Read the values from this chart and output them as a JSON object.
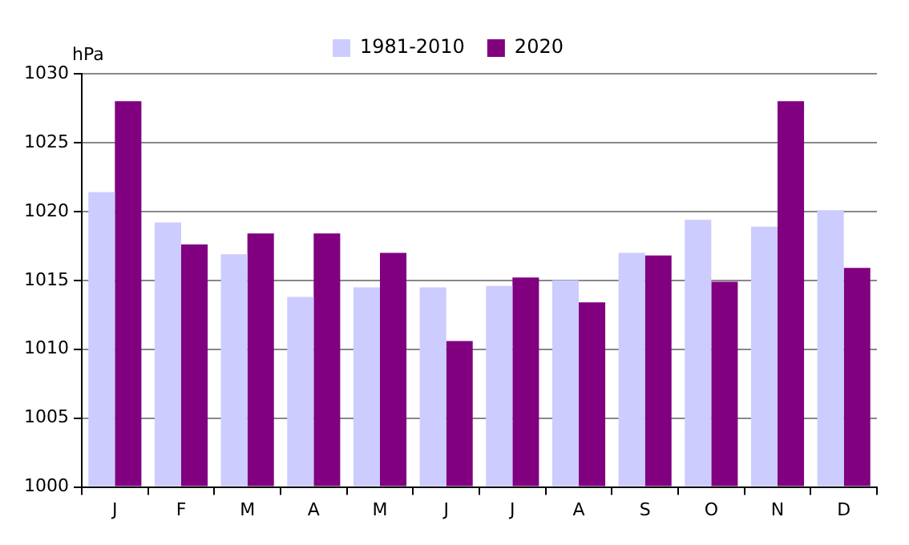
{
  "chart_data": {
    "type": "bar",
    "ylabel": "hPa",
    "categories": [
      "J",
      "F",
      "M",
      "A",
      "M",
      "J",
      "J",
      "A",
      "S",
      "O",
      "N",
      "D"
    ],
    "series": [
      {
        "name": "1981-2010",
        "color": "#ccccff",
        "values": [
          1021.4,
          1019.2,
          1016.9,
          1013.8,
          1014.5,
          1014.5,
          1014.6,
          1015.0,
          1017.0,
          1019.4,
          1018.9,
          1020.1
        ]
      },
      {
        "name": "2020",
        "color": "#800080",
        "values": [
          1028.0,
          1017.6,
          1018.4,
          1018.4,
          1017.0,
          1010.6,
          1015.2,
          1013.4,
          1016.8,
          1014.9,
          1028.0,
          1015.9
        ]
      }
    ],
    "ylim": [
      1000,
      1030
    ],
    "yticks": [
      1000,
      1005,
      1010,
      1015,
      1020,
      1025,
      1030
    ],
    "grid": "y",
    "legend": "top"
  }
}
